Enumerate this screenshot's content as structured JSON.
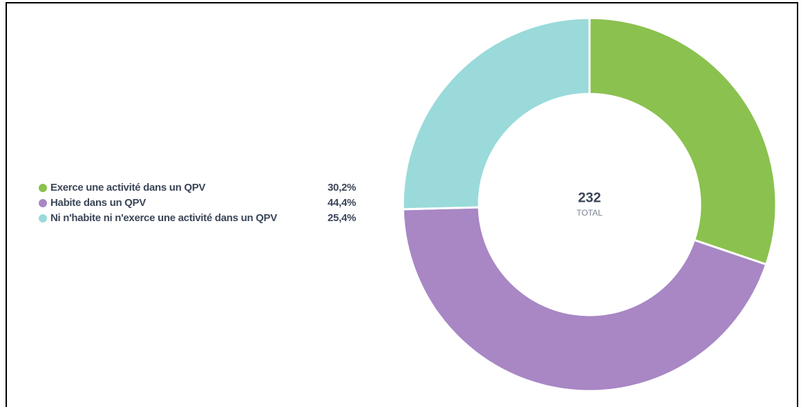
{
  "chart_data": {
    "type": "donut",
    "categories": [
      "Exerce une activité dans un QPV",
      "Habite dans un QPV",
      "Ni n'habite ni n'exerce une activité dans un QPV"
    ],
    "values": [
      30.2,
      44.4,
      25.4
    ],
    "value_labels": [
      "30,2%",
      "44,4%",
      "25,4%"
    ],
    "colors": [
      "#8bc14f",
      "#a887c4",
      "#9adada"
    ],
    "total": 232,
    "total_label": "TOTAL",
    "legend": "left"
  }
}
